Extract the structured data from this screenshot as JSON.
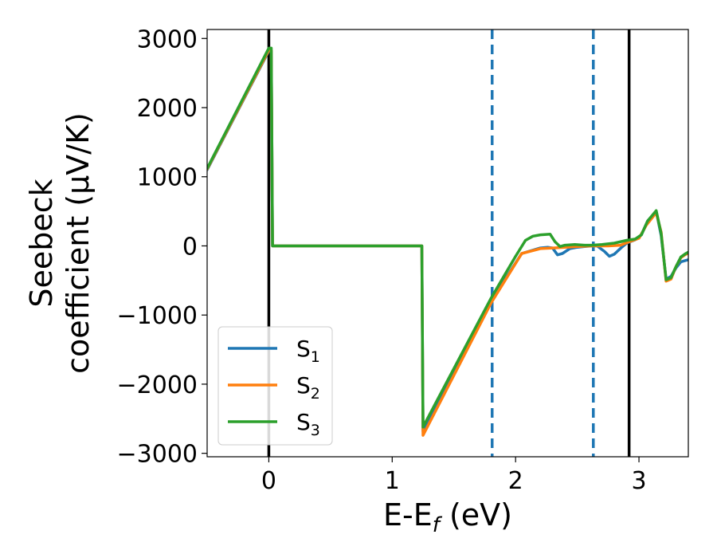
{
  "chart_data": {
    "type": "line",
    "title": "",
    "xlabel": "E-E",
    "xlabel_sub": "f",
    "xlabel_unit": " (eV)",
    "ylabel_line1": "Seebeck",
    "ylabel_line2": "coefficient  (μV/K)",
    "xlim": [
      -0.5,
      3.4
    ],
    "ylim": [
      -3050,
      3130
    ],
    "xticks": [
      0,
      1,
      2,
      3
    ],
    "xtick_labels": [
      "0",
      "1",
      "2",
      "3"
    ],
    "yticks": [
      -3000,
      -2000,
      -1000,
      0,
      1000,
      2000,
      3000
    ],
    "ytick_labels": [
      "−3000",
      "−2000",
      "−1000",
      "0",
      "1000",
      "2000",
      "3000"
    ],
    "grid": false,
    "legend_position": "lower-left",
    "colors": {
      "s1": "#1f77b4",
      "s2": "#ff7f0e",
      "s3": "#2ca02c",
      "solid_vline": "#000000",
      "dashed_vline": "#1f77b4"
    },
    "vlines_solid": [
      0.0,
      2.92
    ],
    "vlines_dashed": [
      1.81,
      2.63
    ],
    "series": [
      {
        "name": "S",
        "sub": "1",
        "color": "#1f77b4",
        "points": [
          [
            -0.5,
            1100
          ],
          [
            0.0,
            2820
          ],
          [
            0.02,
            2820
          ],
          [
            0.03,
            0
          ],
          [
            1.24,
            0
          ],
          [
            1.25,
            -2680
          ],
          [
            1.8,
            -800
          ],
          [
            2.05,
            -110
          ],
          [
            2.2,
            -30
          ],
          [
            2.26,
            -20
          ],
          [
            2.3,
            -30
          ],
          [
            2.34,
            -130
          ],
          [
            2.38,
            -110
          ],
          [
            2.44,
            -40
          ],
          [
            2.5,
            -20
          ],
          [
            2.56,
            -10
          ],
          [
            2.62,
            0
          ],
          [
            2.66,
            0
          ],
          [
            2.72,
            -80
          ],
          [
            2.76,
            -150
          ],
          [
            2.8,
            -120
          ],
          [
            2.86,
            -20
          ],
          [
            2.9,
            40
          ],
          [
            2.97,
            90
          ],
          [
            3.02,
            160
          ],
          [
            3.07,
            360
          ],
          [
            3.14,
            500
          ],
          [
            3.18,
            150
          ],
          [
            3.22,
            -480
          ],
          [
            3.26,
            -440
          ],
          [
            3.3,
            -320
          ],
          [
            3.34,
            -230
          ],
          [
            3.38,
            -210
          ],
          [
            3.4,
            -200
          ]
        ]
      },
      {
        "name": "S",
        "sub": "2",
        "color": "#ff7f0e",
        "points": [
          [
            -0.5,
            1110
          ],
          [
            0.0,
            2830
          ],
          [
            0.02,
            2830
          ],
          [
            0.03,
            0
          ],
          [
            1.24,
            0
          ],
          [
            1.25,
            -2740
          ],
          [
            1.8,
            -830
          ],
          [
            2.05,
            -110
          ],
          [
            2.2,
            -40
          ],
          [
            2.3,
            -30
          ],
          [
            2.4,
            -20
          ],
          [
            2.5,
            -10
          ],
          [
            2.62,
            0
          ],
          [
            2.75,
            0
          ],
          [
            2.85,
            10
          ],
          [
            2.92,
            60
          ],
          [
            3.0,
            110
          ],
          [
            3.06,
            300
          ],
          [
            3.14,
            480
          ],
          [
            3.18,
            200
          ],
          [
            3.22,
            -510
          ],
          [
            3.26,
            -480
          ],
          [
            3.3,
            -300
          ],
          [
            3.34,
            -170
          ],
          [
            3.38,
            -120
          ],
          [
            3.4,
            -110
          ]
        ]
      },
      {
        "name": "S",
        "sub": "3",
        "color": "#2ca02c",
        "points": [
          [
            -0.5,
            1120
          ],
          [
            0.0,
            2860
          ],
          [
            0.02,
            2860
          ],
          [
            0.03,
            0
          ],
          [
            1.24,
            0
          ],
          [
            1.25,
            -2620
          ],
          [
            1.8,
            -760
          ],
          [
            2.0,
            -150
          ],
          [
            2.08,
            80
          ],
          [
            2.14,
            140
          ],
          [
            2.2,
            160
          ],
          [
            2.28,
            170
          ],
          [
            2.32,
            60
          ],
          [
            2.36,
            -10
          ],
          [
            2.4,
            10
          ],
          [
            2.48,
            20
          ],
          [
            2.56,
            10
          ],
          [
            2.62,
            10
          ],
          [
            2.7,
            20
          ],
          [
            2.8,
            40
          ],
          [
            2.9,
            80
          ],
          [
            2.97,
            100
          ],
          [
            3.02,
            160
          ],
          [
            3.07,
            360
          ],
          [
            3.14,
            510
          ],
          [
            3.18,
            180
          ],
          [
            3.22,
            -490
          ],
          [
            3.26,
            -460
          ],
          [
            3.3,
            -300
          ],
          [
            3.34,
            -160
          ],
          [
            3.38,
            -110
          ],
          [
            3.4,
            -90
          ]
        ]
      }
    ]
  }
}
